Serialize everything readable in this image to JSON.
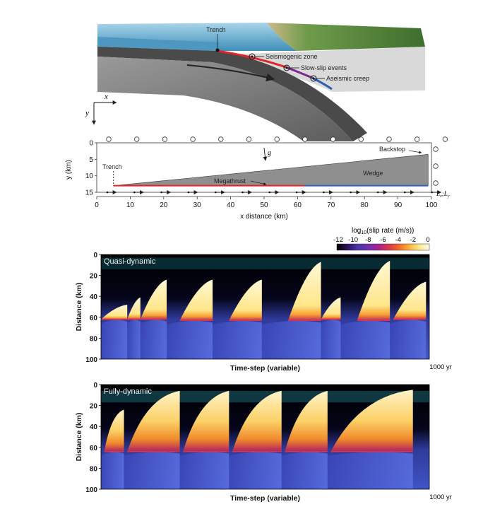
{
  "colors": {
    "seismogenic": "#e0262b",
    "slow_slip": "#7a2b8a",
    "aseismic": "#2f5fb0",
    "slab": "#7c7c7c",
    "wedge": "#8f8f8f",
    "ocean": "#5fa9cc",
    "colorbar": [
      "#000000",
      "#2b0f54",
      "#4a33a8",
      "#6e2fb0",
      "#a81f8f",
      "#d6344d",
      "#f2692a",
      "#fbb03b",
      "#fde78a",
      "#fffbe8"
    ]
  },
  "panel_a": {
    "labels": {
      "trench": "Trench",
      "seismogenic": "Seismogenic zone",
      "slow_slip": "Slow-slip events",
      "aseismic": "Aseismic creep"
    },
    "axes": {
      "x": "x",
      "y": "y"
    }
  },
  "panel_b": {
    "ylabel": "y (km)",
    "xlabel": "x distance (km)",
    "yticks": [
      "0",
      "5",
      "10",
      "15"
    ],
    "xticks": [
      "0",
      "10",
      "20",
      "30",
      "40",
      "50",
      "60",
      "70",
      "80",
      "90",
      "100"
    ],
    "labels": {
      "g": "g",
      "backstop": "Backstop",
      "trench": "Trench",
      "megathrust": "Megathrust",
      "wedge": "Wedge",
      "lx": "L",
      "lx_sub": "x",
      "sep": ";",
      "ly": "L",
      "ly_sub": "y"
    },
    "geometry_km": {
      "trench_x": 5,
      "backstop_x": 99,
      "wedge_bottom_y": 13,
      "backstop_top_y": 3.5,
      "seismogenic_to_x": 62
    }
  },
  "colorbar": {
    "title_prefix": "log",
    "title_sub": "10",
    "title_suffix": "(slip rate (m/s))",
    "ticks": [
      "-12",
      "-10",
      "-8",
      "-6",
      "-4",
      "-2",
      "0"
    ]
  },
  "chart_data": [
    {
      "type": "heatmap",
      "title": "Quasi-dynamic",
      "xlabel": "Time-step (variable)",
      "xend_label": "1000 yr",
      "ylabel": "Distance (km)",
      "yticks": [
        "0",
        "20",
        "40",
        "60",
        "80",
        "100"
      ],
      "ylim": [
        100,
        0
      ],
      "color_scale": {
        "quantity": "log10 slip rate (m/s)",
        "range": [
          -12,
          0
        ]
      },
      "events": [
        {
          "t": 0.08,
          "top_km": 48,
          "bottom_km": 62
        },
        {
          "t": 0.12,
          "top_km": 41,
          "bottom_km": 62
        },
        {
          "t": 0.2,
          "top_km": 24,
          "bottom_km": 62
        },
        {
          "t": 0.34,
          "top_km": 24,
          "bottom_km": 63
        },
        {
          "t": 0.49,
          "top_km": 24,
          "bottom_km": 63
        },
        {
          "t": 0.67,
          "top_km": 7,
          "bottom_km": 63
        },
        {
          "t": 0.73,
          "top_km": 41,
          "bottom_km": 62
        },
        {
          "t": 0.88,
          "top_km": 6,
          "bottom_km": 63
        },
        {
          "t": 0.99,
          "top_km": 26,
          "bottom_km": 62
        }
      ]
    },
    {
      "type": "heatmap",
      "title": "Fully-dynamic",
      "xlabel": "Time-step (variable)",
      "xend_label": "1000 yr",
      "ylabel": "Distance (km)",
      "yticks": [
        "0",
        "20",
        "40",
        "60",
        "80",
        "100"
      ],
      "ylim": [
        100,
        0
      ],
      "color_scale": {
        "quantity": "log10 slip rate (m/s)",
        "range": [
          -12,
          0
        ]
      },
      "events": [
        {
          "t": 0.07,
          "top_km": 24,
          "bottom_km": 64
        },
        {
          "t": 0.24,
          "top_km": 6,
          "bottom_km": 64
        },
        {
          "t": 0.39,
          "top_km": 6,
          "bottom_km": 64
        },
        {
          "t": 0.55,
          "top_km": 6,
          "bottom_km": 64
        },
        {
          "t": 0.69,
          "top_km": 6,
          "bottom_km": 64
        },
        {
          "t": 0.95,
          "top_km": 5,
          "bottom_km": 64
        }
      ]
    }
  ]
}
